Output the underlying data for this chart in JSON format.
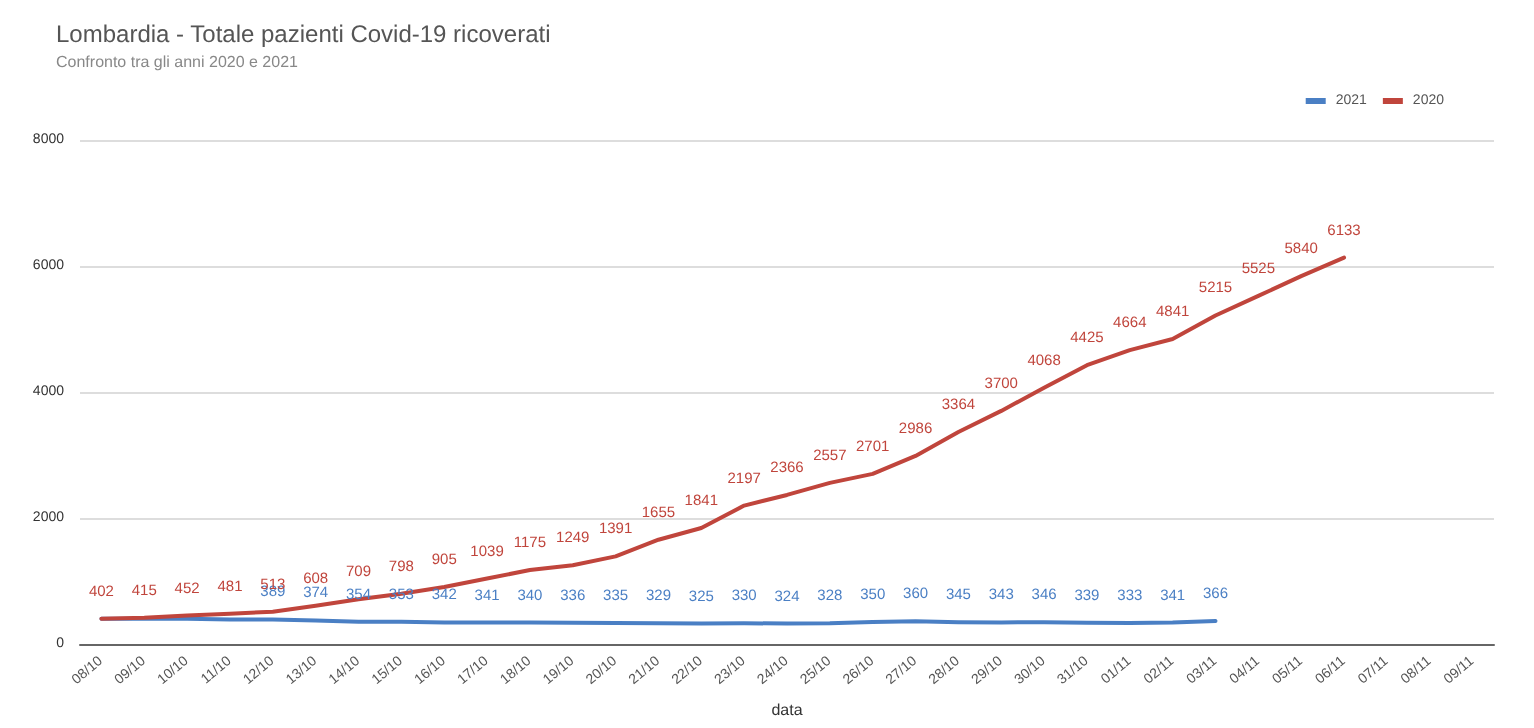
{
  "chart_data": {
    "type": "line",
    "title": "Lombardia - Totale pazienti Covid-19 ricoverati",
    "subtitle": "Confronto tra gli anni 2020 e 2021",
    "xlabel": "data",
    "categories": [
      "08/10",
      "09/10",
      "10/10",
      "11/10",
      "12/10",
      "13/10",
      "14/10",
      "15/10",
      "16/10",
      "17/10",
      "18/10",
      "19/10",
      "20/10",
      "21/10",
      "22/10",
      "23/10",
      "24/10",
      "25/10",
      "26/10",
      "27/10",
      "28/10",
      "29/10",
      "30/10",
      "31/10",
      "01/11",
      "02/11",
      "03/11",
      "04/11",
      "05/11",
      "06/11",
      "07/11",
      "08/11",
      "09/11"
    ],
    "series": [
      {
        "name": "2021",
        "color": "#4a7fc4",
        "values": [
          400,
          400,
          400,
          390,
          389,
          374,
          354,
          353,
          342,
          341,
          340,
          336,
          335,
          329,
          325,
          330,
          324,
          328,
          350,
          360,
          345,
          343,
          346,
          339,
          333,
          341,
          366,
          null,
          null,
          null,
          null,
          null,
          null
        ],
        "value_labels": [
          null,
          null,
          null,
          null,
          "389",
          "374",
          "354",
          "353",
          "342",
          "341",
          "340",
          "336",
          "335",
          "329",
          "325",
          "330",
          "324",
          "328",
          "350",
          "360",
          "345",
          "343",
          "346",
          "339",
          "333",
          "341",
          "366",
          null,
          null,
          null,
          null,
          null,
          null
        ]
      },
      {
        "name": "2020",
        "color": "#c0453c",
        "values": [
          402,
          415,
          452,
          481,
          513,
          608,
          709,
          798,
          905,
          1039,
          1175,
          1249,
          1391,
          1655,
          1841,
          2197,
          2366,
          2557,
          2701,
          2986,
          3364,
          3700,
          4068,
          4425,
          4664,
          4841,
          5215,
          5525,
          5840,
          6133,
          null,
          null,
          null
        ],
        "value_labels": [
          "402",
          "415",
          "452",
          "481",
          "513",
          "608",
          "709",
          "798",
          "905",
          "1039",
          "1175",
          "1249",
          "1391",
          "1655",
          "1841",
          "2197",
          "2366",
          "2557",
          "2701",
          "2986",
          "3364",
          "3700",
          "4068",
          "4425",
          "4664",
          "4841",
          "5215",
          "5525",
          "5840",
          "6133",
          null,
          null,
          null
        ]
      }
    ],
    "ylim": [
      0,
      8000
    ],
    "yticks": [
      0,
      2000,
      4000,
      6000,
      8000
    ],
    "grid": "y",
    "legend": "top right",
    "marker": "none",
    "line_style": "solid"
  }
}
